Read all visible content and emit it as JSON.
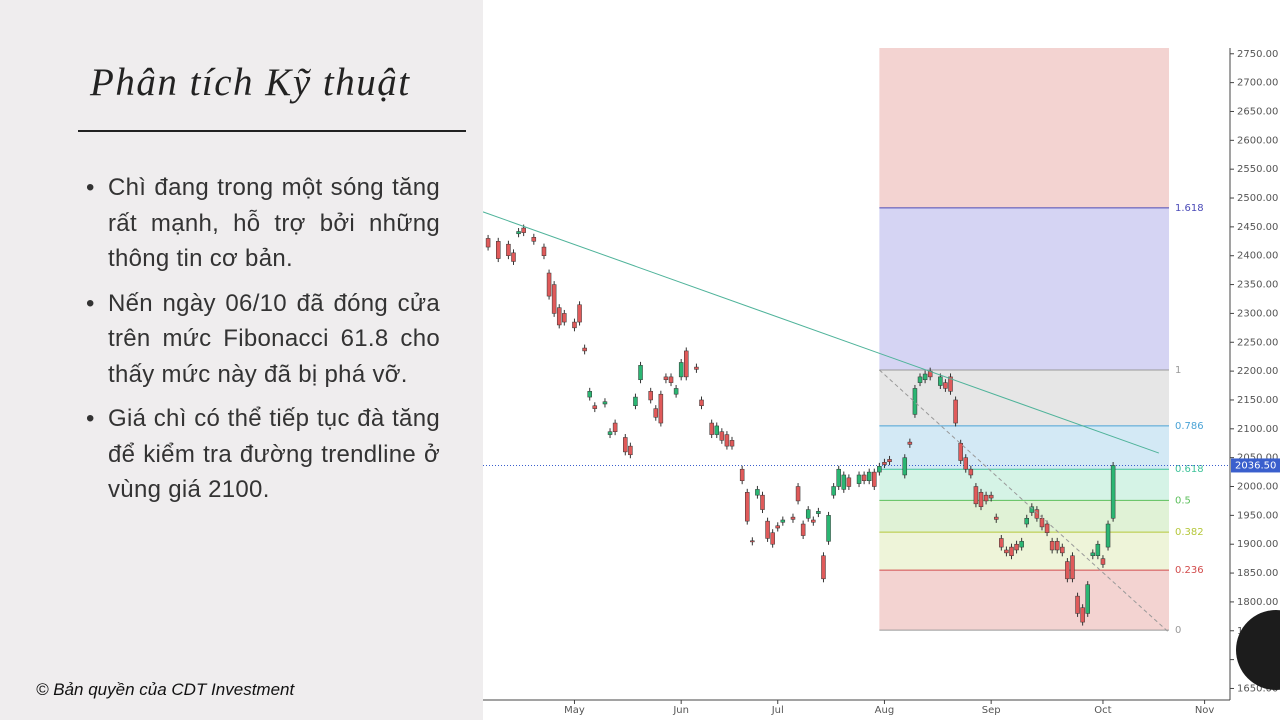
{
  "slide": {
    "title": "Phân tích Kỹ thuật",
    "bullets": [
      "Chì đang trong một sóng tăng rất mạnh, hỗ trợ bởi những thông tin cơ bản.",
      "Nến ngày 06/10 đã đóng cửa trên mức Fibonacci 61.8 cho thấy mức này đã bị phá vỡ.",
      "Giá chì có thể tiếp tục đà tăng để kiểm tra đường trendline ở vùng giá 2100."
    ],
    "copyright": "© Bản quyền của CDT Investment"
  },
  "chart_data": {
    "type": "candlestick",
    "xlim": [
      0,
      147
    ],
    "ylim": [
      1630,
      2760
    ],
    "xticks": [
      {
        "value": 18,
        "label": "May"
      },
      {
        "value": 39,
        "label": "Jun"
      },
      {
        "value": 58,
        "label": "Jul"
      },
      {
        "value": 79,
        "label": "Aug"
      },
      {
        "value": 100,
        "label": "Sep"
      },
      {
        "value": 122,
        "label": "Oct"
      },
      {
        "value": 142,
        "label": "Nov"
      }
    ],
    "yticks": [
      {
        "value": 1650,
        "label": "1650.00"
      },
      {
        "value": 1700,
        "label": "1700.00"
      },
      {
        "value": 1750,
        "label": "1750.00"
      },
      {
        "value": 1800,
        "label": "1800.00"
      },
      {
        "value": 1850,
        "label": "1850.00"
      },
      {
        "value": 1900,
        "label": "1900.00"
      },
      {
        "value": 1950,
        "label": "1950.00"
      },
      {
        "value": 2000,
        "label": "2000.00"
      },
      {
        "value": 2050,
        "label": "2050.00"
      },
      {
        "value": 2100,
        "label": "2100.00"
      },
      {
        "value": 2150,
        "label": "2150.00"
      },
      {
        "value": 2200,
        "label": "2200.00"
      },
      {
        "value": 2250,
        "label": "2250.00"
      },
      {
        "value": 2300,
        "label": "2300.00"
      },
      {
        "value": 2350,
        "label": "2350.00"
      },
      {
        "value": 2400,
        "label": "2400.00"
      },
      {
        "value": 2450,
        "label": "2450.00"
      },
      {
        "value": 2500,
        "label": "2500.00"
      },
      {
        "value": 2550,
        "label": "2550.00"
      },
      {
        "value": 2600,
        "label": "2600.00"
      },
      {
        "value": 2650,
        "label": "2650.00"
      },
      {
        "value": 2700,
        "label": "2700.00"
      },
      {
        "value": 2750,
        "label": "2750.00"
      }
    ],
    "up_color": "#2bb673",
    "down_color": "#e05a5a",
    "candles": {
      "x": [
        1,
        3,
        5,
        6,
        7,
        8,
        10,
        12,
        13,
        14,
        15,
        16,
        18,
        19,
        20,
        21,
        22,
        24,
        25,
        26,
        28,
        29,
        30,
        31,
        33,
        34,
        35,
        36,
        37,
        38,
        39,
        40,
        42,
        43,
        45,
        46,
        47,
        48,
        49,
        51,
        52,
        53,
        54,
        55,
        56,
        57,
        58,
        59,
        61,
        62,
        63,
        64,
        65,
        66,
        67,
        68,
        69,
        70,
        71,
        72,
        74,
        75,
        76,
        77,
        78,
        79,
        80,
        83,
        84,
        85,
        86,
        87,
        88,
        90,
        91,
        92,
        93,
        94,
        95,
        96,
        97,
        98,
        99,
        100,
        101,
        102,
        103,
        104,
        105,
        106,
        107,
        108,
        109,
        110,
        111,
        112,
        113,
        114,
        115,
        116,
        117,
        118,
        119,
        120,
        121,
        122,
        123,
        124
      ],
      "open": [
        2430,
        2425,
        2420,
        2405,
        2438,
        2448,
        2432,
        2415,
        2370,
        2350,
        2310,
        2300,
        2285,
        2315,
        2240,
        2155,
        2140,
        2143,
        2090,
        2110,
        2085,
        2070,
        2140,
        2185,
        2165,
        2135,
        2160,
        2190,
        2190,
        2160,
        2190,
        2235,
        2207,
        2150,
        2110,
        2090,
        2095,
        2090,
        2080,
        2030,
        1990,
        1906,
        1985,
        1985,
        1940,
        1920,
        1932,
        1938,
        1947,
        2000,
        1935,
        1945,
        1942,
        1953,
        1880,
        1905,
        1985,
        2000,
        1995,
        2015,
        2005,
        2020,
        2010,
        2025,
        2025,
        2042,
        2047,
        2020,
        2077,
        2125,
        2180,
        2185,
        2200,
        2175,
        2180,
        2190,
        2150,
        2075,
        2050,
        2030,
        2000,
        1990,
        1985,
        1985,
        1947,
        1910,
        1890,
        1895,
        1900,
        1895,
        1935,
        1955,
        1960,
        1945,
        1935,
        1905,
        1905,
        1895,
        1870,
        1880,
        1810,
        1790,
        1780,
        1880,
        1880,
        1875,
        1895,
        1945
      ],
      "close": [
        2415,
        2395,
        2400,
        2390,
        2442,
        2440,
        2425,
        2400,
        2330,
        2300,
        2280,
        2285,
        2275,
        2285,
        2235,
        2165,
        2135,
        2147,
        2095,
        2095,
        2060,
        2055,
        2155,
        2210,
        2150,
        2120,
        2110,
        2185,
        2180,
        2170,
        2215,
        2190,
        2203,
        2140,
        2090,
        2105,
        2080,
        2070,
        2070,
        2010,
        1940,
        1904,
        1995,
        1960,
        1910,
        1900,
        1928,
        1942,
        1943,
        1975,
        1915,
        1960,
        1938,
        1957,
        1840,
        1950,
        2000,
        2030,
        2020,
        2000,
        2020,
        2010,
        2025,
        2000,
        2035,
        2038,
        2043,
        2050,
        2073,
        2170,
        2190,
        2195,
        2190,
        2190,
        2170,
        2165,
        2110,
        2045,
        2030,
        2020,
        1970,
        1965,
        1975,
        1980,
        1943,
        1895,
        1885,
        1880,
        1890,
        1905,
        1945,
        1965,
        1945,
        1930,
        1920,
        1890,
        1890,
        1885,
        1840,
        1840,
        1780,
        1765,
        1830,
        1885,
        1900,
        1865,
        1935,
        2036.5
      ],
      "high": [
        2436,
        2431,
        2426,
        2411,
        2448,
        2454,
        2438,
        2421,
        2376,
        2356,
        2316,
        2306,
        2291,
        2321,
        2246,
        2171,
        2146,
        2153,
        2101,
        2116,
        2091,
        2076,
        2161,
        2216,
        2171,
        2141,
        2166,
        2196,
        2196,
        2176,
        2221,
        2241,
        2213,
        2156,
        2116,
        2111,
        2101,
        2096,
        2086,
        2036,
        1996,
        1912,
        2001,
        1991,
        1946,
        1926,
        1938,
        1948,
        1953,
        2006,
        1941,
        1966,
        1948,
        1963,
        1886,
        1956,
        2006,
        2036,
        2026,
        2021,
        2026,
        2026,
        2031,
        2031,
        2041,
        2048,
        2053,
        2056,
        2083,
        2176,
        2196,
        2201,
        2206,
        2196,
        2186,
        2196,
        2156,
        2081,
        2056,
        2036,
        2006,
        1996,
        1991,
        1991,
        1953,
        1916,
        1896,
        1901,
        1906,
        1911,
        1951,
        1971,
        1966,
        1951,
        1941,
        1911,
        1911,
        1901,
        1876,
        1886,
        1816,
        1796,
        1836,
        1891,
        1906,
        1881,
        1941,
        2042.5
      ],
      "low": [
        2409,
        2389,
        2394,
        2384,
        2432,
        2434,
        2419,
        2394,
        2324,
        2294,
        2274,
        2279,
        2269,
        2279,
        2229,
        2149,
        2129,
        2137,
        2084,
        2089,
        2054,
        2049,
        2134,
        2179,
        2144,
        2114,
        2104,
        2179,
        2174,
        2154,
        2184,
        2184,
        2197,
        2134,
        2084,
        2084,
        2074,
        2064,
        2064,
        2004,
        1934,
        1898,
        1979,
        1954,
        1904,
        1894,
        1922,
        1932,
        1937,
        1969,
        1909,
        1939,
        1932,
        1947,
        1834,
        1899,
        1979,
        1994,
        1989,
        1994,
        1999,
        2004,
        2004,
        1994,
        2019,
        2032,
        2037,
        2014,
        2067,
        2119,
        2174,
        2179,
        2184,
        2169,
        2164,
        2159,
        2104,
        2039,
        2024,
        2014,
        1964,
        1959,
        1969,
        1974,
        1937,
        1889,
        1879,
        1874,
        1884,
        1889,
        1929,
        1949,
        1939,
        1924,
        1914,
        1884,
        1884,
        1879,
        1834,
        1834,
        1774,
        1759,
        1774,
        1874,
        1874,
        1859,
        1889,
        1939
      ]
    },
    "trendline": {
      "x": [
        0,
        133
      ],
      "y": [
        2476,
        2058
      ],
      "color": "#4fb39a"
    },
    "fib_diagonal": {
      "x": [
        78,
        135
      ],
      "y": [
        2202,
        1747
      ],
      "color": "#999999"
    },
    "last_price": {
      "value": 2036.5,
      "label": "2036.50",
      "color": "#3a5fcd"
    },
    "fibonacci": {
      "x": [
        78,
        135
      ],
      "top": 2760,
      "top_color": "#f3d3d1",
      "levels": [
        {
          "ratio": 1.618,
          "price": 2483,
          "color": "#4a4ab8",
          "fill": "#d5d4f3"
        },
        {
          "ratio": 1,
          "price": 2202,
          "color": "#999999",
          "fill": "#e6e6e6"
        },
        {
          "ratio": 0.786,
          "price": 2105,
          "color": "#4aa3d6",
          "fill": "#d3e9f5"
        },
        {
          "ratio": 0.618,
          "price": 2030,
          "color": "#3fc39a",
          "fill": "#d5f3e6"
        },
        {
          "ratio": 0.5,
          "price": 1976,
          "color": "#5cbf5c",
          "fill": "#e0f2d6"
        },
        {
          "ratio": 0.382,
          "price": 1921,
          "color": "#b5c73b",
          "fill": "#eef4d9"
        },
        {
          "ratio": 0.236,
          "price": 1855,
          "color": "#d24c4c",
          "fill": "#f3d3d1"
        },
        {
          "ratio": 0,
          "price": 1751,
          "color": "#999999"
        }
      ]
    }
  }
}
